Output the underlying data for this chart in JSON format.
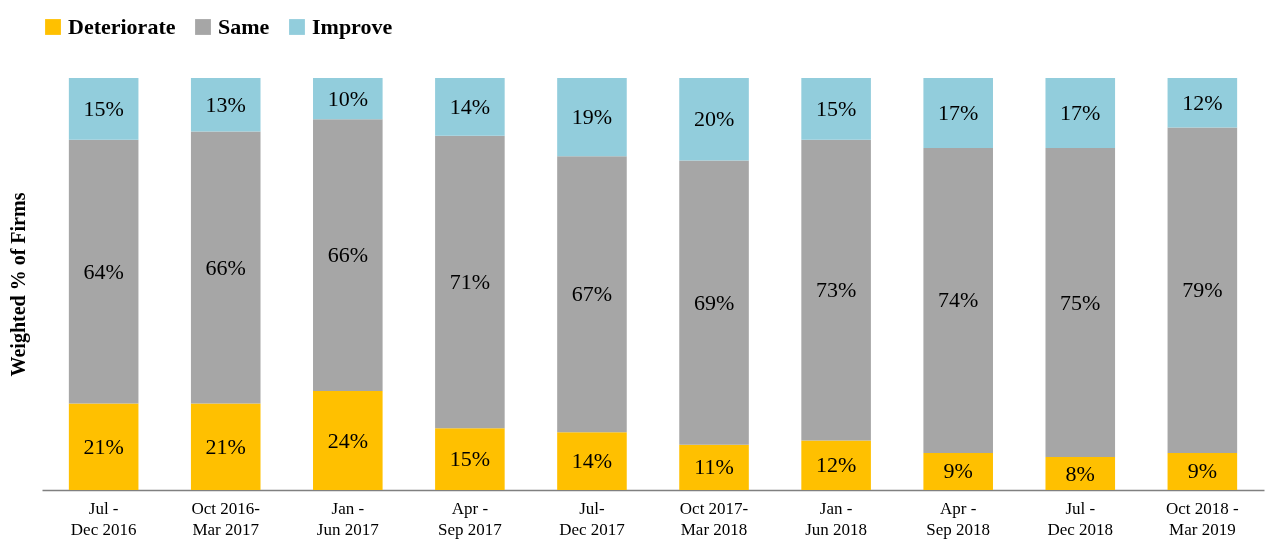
{
  "chart_data": {
    "type": "bar",
    "stacked": true,
    "relative": false,
    "ylabel": "Weighted % of Firms",
    "legend": "top",
    "categories": [
      "Jul -\nDec 2016",
      "Oct 2016-\nMar 2017",
      "Jan -\nJun 2017",
      "Apr -\nSep 2017",
      "Jul-\nDec 2017",
      "Oct 2017-\nMar 2018",
      "Jan -\nJun 2018",
      "Apr -\nSep 2018",
      "Jul -\nDec 2018",
      "Oct 2018 -\nMar 2019"
    ],
    "series": [
      {
        "name": "Deteriorate",
        "color": "#ffc000",
        "values": [
          21,
          21,
          24,
          15,
          14,
          11,
          12,
          9,
          8,
          9
        ],
        "value_labels": [
          "21%",
          "21%",
          "24%",
          "15%",
          "14%",
          "11%",
          "12%",
          "9%",
          "8%",
          "9%"
        ]
      },
      {
        "name": "Same",
        "color": "#a6a6a6",
        "values": [
          64,
          66,
          66,
          71,
          67,
          69,
          73,
          74,
          75,
          79
        ],
        "value_labels": [
          "64%",
          "66%",
          "66%",
          "71%",
          "67%",
          "69%",
          "73%",
          "74%",
          "75%",
          "79%"
        ]
      },
      {
        "name": "Improve",
        "color": "#92cddc",
        "values": [
          15,
          13,
          10,
          14,
          19,
          20,
          15,
          17,
          17,
          12
        ],
        "value_labels": [
          "15%",
          "13%",
          "10%",
          "14%",
          "19%",
          "20%",
          "15%",
          "17%",
          "17%",
          "12%"
        ]
      }
    ]
  }
}
